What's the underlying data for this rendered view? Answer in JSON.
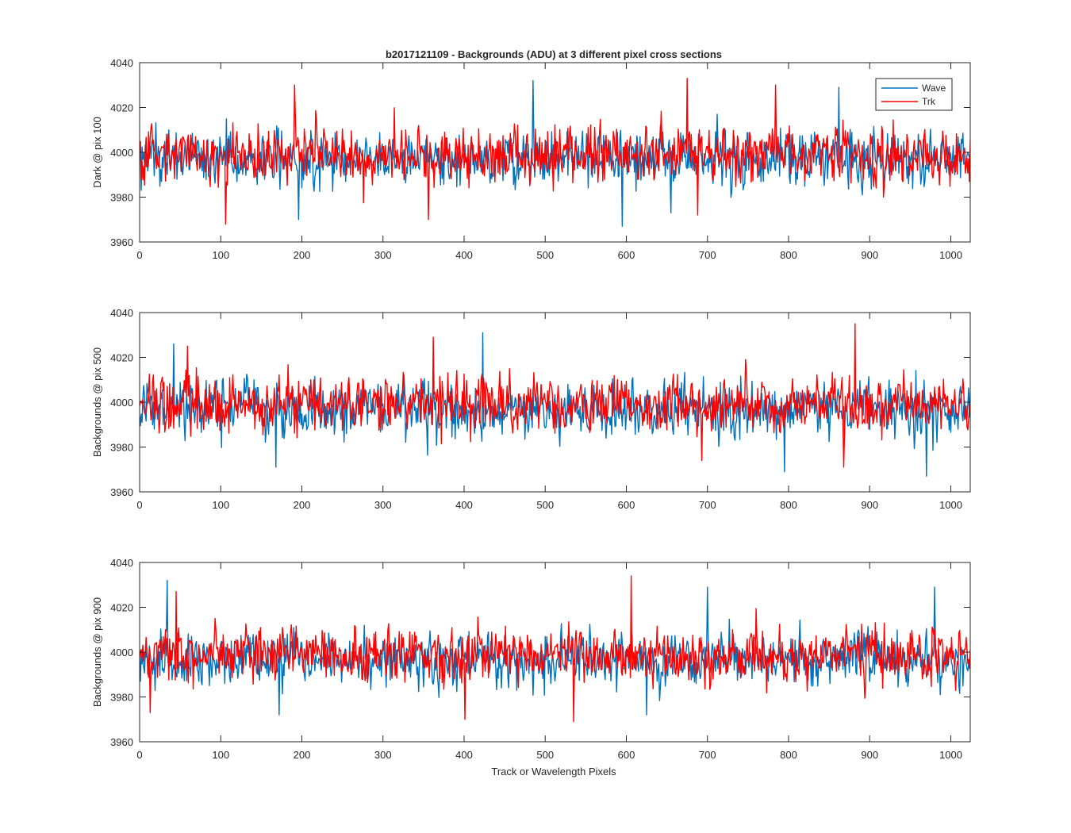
{
  "chart_data": {
    "type": "line",
    "title": "b2017121109 - Backgrounds (ADU) at 3 different pixel cross sections",
    "xlabel": "Track or Wavelength Pixels",
    "legend": {
      "placement": "top-right",
      "entries": [
        {
          "name": "Wave",
          "color": "#0072BD"
        },
        {
          "name": "Trk",
          "color": "#FF0000"
        }
      ]
    },
    "subplots": [
      {
        "ylabel": "Dark @ pix 100",
        "xlim": [
          0,
          1024
        ],
        "ylim": [
          3960,
          4040
        ],
        "xticks": [
          "0",
          "100",
          "200",
          "300",
          "400",
          "500",
          "600",
          "700",
          "800",
          "900",
          "1000"
        ],
        "yticks": [
          "3960",
          "3980",
          "4000",
          "4020",
          "4040"
        ],
        "series": [
          {
            "name": "Wave",
            "mean": 3997.5,
            "noise": 7,
            "peaks": [
              [
                485,
                4032
              ],
              [
                862,
                4029
              ],
              [
                196,
                3970
              ],
              [
                595,
                3967
              ],
              [
                655,
                3973
              ]
            ]
          },
          {
            "name": "Trk",
            "mean": 3999,
            "noise": 7,
            "peaks": [
              [
                191,
                4030
              ],
              [
                675,
                4033
              ],
              [
                106,
                3968
              ],
              [
                356,
                3970
              ],
              [
                688,
                3972
              ],
              [
                784,
                4030
              ]
            ]
          }
        ]
      },
      {
        "ylabel": "Backgrounds @ pix 500",
        "xlim": [
          0,
          1024
        ],
        "ylim": [
          3960,
          4040
        ],
        "xticks": [
          "0",
          "100",
          "200",
          "300",
          "400",
          "500",
          "600",
          "700",
          "800",
          "900",
          "1000"
        ],
        "yticks": [
          "3960",
          "3980",
          "4000",
          "4020",
          "4040"
        ],
        "series": [
          {
            "name": "Wave",
            "mean": 3996.5,
            "noise": 7,
            "peaks": [
              [
                423,
                4031
              ],
              [
                42,
                4026
              ],
              [
                168,
                3971
              ],
              [
                795,
                3969
              ],
              [
                970,
                3967
              ]
            ]
          },
          {
            "name": "Trk",
            "mean": 3999,
            "noise": 7,
            "peaks": [
              [
                882,
                4035
              ],
              [
                362,
                4029
              ],
              [
                59,
                4025
              ],
              [
                693,
                3974
              ],
              [
                868,
                3971
              ]
            ]
          }
        ]
      },
      {
        "ylabel": "Backgrounds @ pix 900",
        "xlim": [
          0,
          1024
        ],
        "ylim": [
          3960,
          4040
        ],
        "xticks": [
          "0",
          "100",
          "200",
          "300",
          "400",
          "500",
          "600",
          "700",
          "800",
          "900",
          "1000"
        ],
        "yticks": [
          "3960",
          "3980",
          "4000",
          "4020",
          "4040"
        ],
        "series": [
          {
            "name": "Wave",
            "mean": 3996.5,
            "noise": 7,
            "peaks": [
              [
                34,
                4032
              ],
              [
                700,
                4029
              ],
              [
                980,
                4029
              ],
              [
                172,
                3972
              ],
              [
                625,
                3972
              ]
            ]
          },
          {
            "name": "Trk",
            "mean": 3999,
            "noise": 7,
            "peaks": [
              [
                606,
                4034
              ],
              [
                45,
                4027
              ],
              [
                535,
                3969
              ],
              [
                401,
                3970
              ],
              [
                13,
                3973
              ]
            ]
          }
        ]
      }
    ]
  }
}
